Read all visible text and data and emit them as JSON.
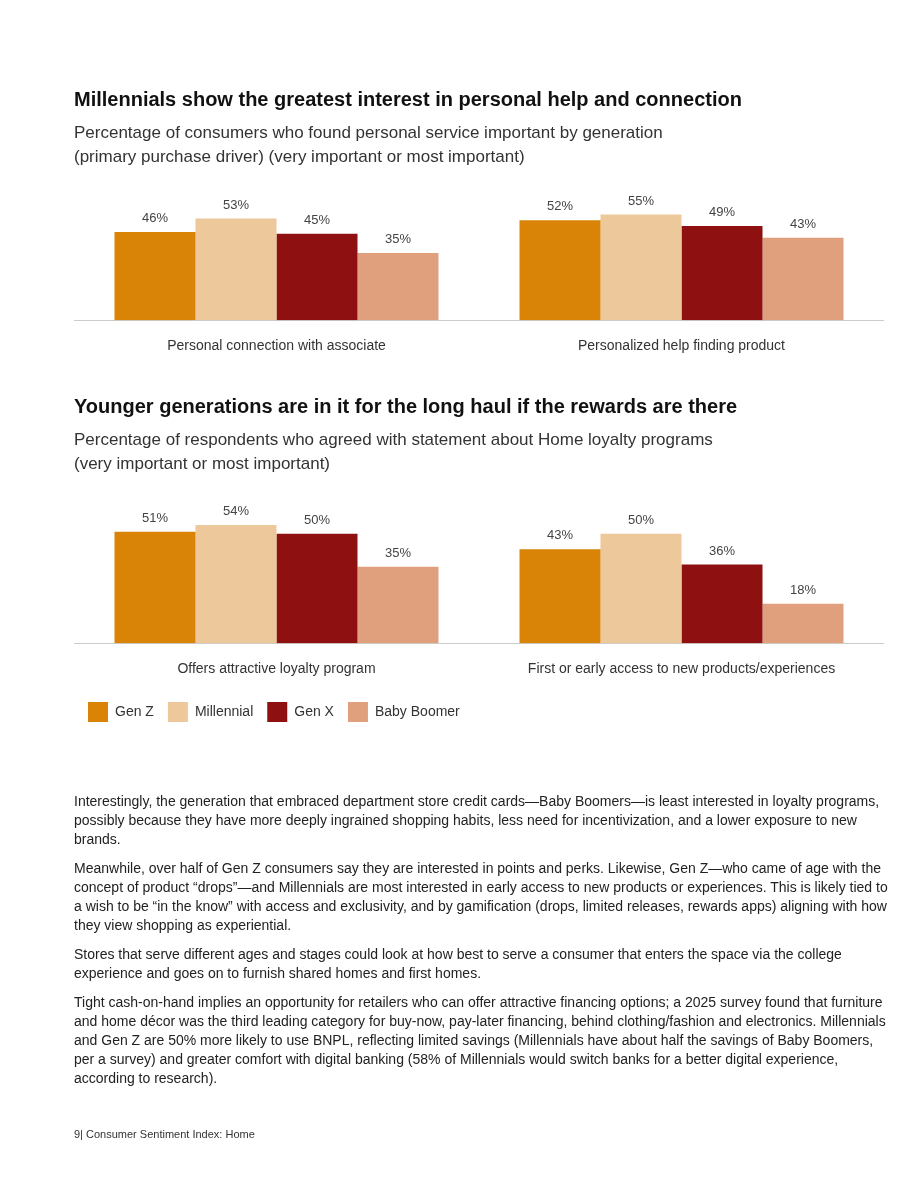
{
  "chart_data": [
    {
      "type": "bar",
      "title": "Millennials show the greatest interest in personal help and connection",
      "subtitle": "Percentage of consumers who found personal service important by generation (primary purchase driver) (very important or most important)",
      "categories": [
        "Personal connection with associate",
        "Personalized help finding product"
      ],
      "legend": false,
      "series": [
        {
          "color": "#d98406",
          "values": [
            46,
            52
          ],
          "value_labels": [
            "46%",
            "52%"
          ]
        },
        {
          "color": "#edc89a",
          "values": [
            53,
            55
          ],
          "value_labels": [
            "53%",
            "55%"
          ]
        },
        {
          "color": "#8e1010",
          "values": [
            45,
            49
          ],
          "value_labels": [
            "45%",
            "49%"
          ]
        },
        {
          "color": "#e0a07e",
          "values": [
            35,
            43
          ],
          "value_labels": [
            "35%",
            "43%"
          ]
        }
      ]
    },
    {
      "type": "bar",
      "title": "Younger generations are in it for the long haul if the rewards are there",
      "subtitle": "Percentage of respondents who agreed with statement about Home loyalty programs (very important or most important)",
      "categories": [
        "Offers attractive loyalty program",
        "First or early access to new products/experiences"
      ],
      "legend": "bottom left",
      "series": [
        {
          "name": "Gen Z",
          "color": "#d98406",
          "values": [
            51,
            43
          ],
          "value_labels": [
            "51%",
            "43%"
          ]
        },
        {
          "name": "Millennial",
          "color": "#edc89a",
          "values": [
            54,
            50
          ],
          "value_labels": [
            "54%",
            "50%"
          ]
        },
        {
          "name": "Gen X",
          "color": "#8e1010",
          "values": [
            50,
            36
          ],
          "value_labels": [
            "50%",
            "36%"
          ]
        },
        {
          "name": "Baby Boomer",
          "color": "#e0a07e",
          "values": [
            35,
            18
          ],
          "value_labels": [
            "35%",
            "18%"
          ]
        }
      ],
      "annotations": [
        "Interestingly, the generation that embraced department store credit cards—Baby Boomers—is least interested in loyalty programs, possibly because they have more deeply ingrained shopping habits, less need for incentivization, and a lower exposure to new brands.",
        "Meanwhile, over half of Gen Z consumers say they are interested in points and perks. Likewise, Gen Z—who came of age with the concept of product “drops”—and Millennials are most interested in early access to new products or experiences. This is likely tied to a wish to be “in the know” with access and exclusivity, and by gamification (drops, limited releases, rewards apps) aligning with how they view shopping as experiential.",
        "Stores that serve different ages and stages could look at how best to serve a consumer that enters the space via the college experience and goes on to furnish shared homes and first homes.",
        "Tight cash-on-hand implies an opportunity for retailers who can offer attractive financing options; a 2025 survey found that furniture and home décor was the third leading category for buy-now, pay-later financing, behind clothing/fashion and electronics. Millennials and Gen Z are 50% more likely to use BNPL, reflecting limited savings (Millennials have about half the savings of Baby Boomers, per a survey) and greater comfort with digital banking (58% of Millennials would switch banks for a better digital experience, according to research).",
        "9| Consumer Sentiment Index: Home"
      ]
    }
  ]
}
